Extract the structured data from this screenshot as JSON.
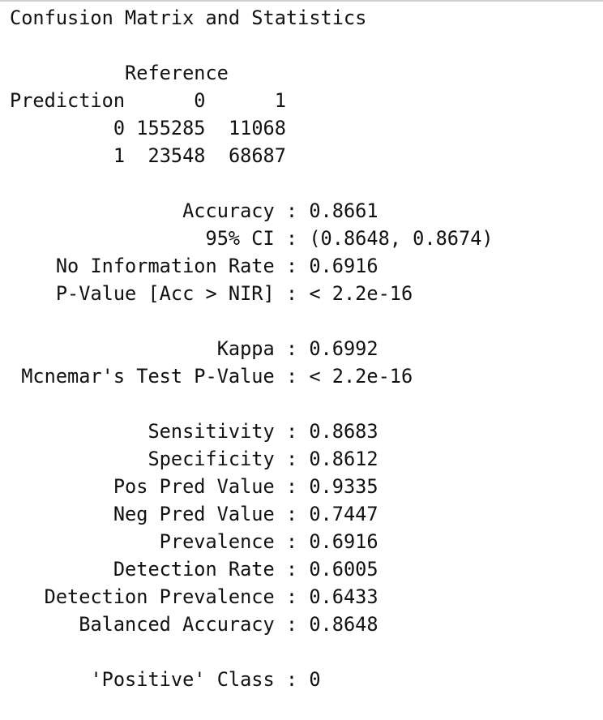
{
  "output": {
    "title": "Confusion Matrix and Statistics",
    "reference_header": "Reference",
    "matrix": {
      "row_label": "Prediction",
      "col_headers": [
        "0",
        "1"
      ],
      "rows": [
        {
          "label": "0",
          "values": [
            "155285",
            "11068"
          ]
        },
        {
          "label": "1",
          "values": [
            "23548",
            "68687"
          ]
        }
      ]
    },
    "stats_group_1": [
      {
        "label": "Accuracy",
        "value": "0.8661"
      },
      {
        "label": "95% CI",
        "value": "(0.8648, 0.8674)"
      },
      {
        "label": "No Information Rate",
        "value": "0.6916"
      },
      {
        "label": "P-Value [Acc > NIR]",
        "value": "< 2.2e-16"
      }
    ],
    "stats_group_2": [
      {
        "label": "Kappa",
        "value": "0.6992"
      },
      {
        "label": "Mcnemar's Test P-Value",
        "value": "< 2.2e-16"
      }
    ],
    "stats_group_3": [
      {
        "label": "Sensitivity",
        "value": "0.8683"
      },
      {
        "label": "Specificity",
        "value": "0.8612"
      },
      {
        "label": "Pos Pred Value",
        "value": "0.9335"
      },
      {
        "label": "Neg Pred Value",
        "value": "0.7447"
      },
      {
        "label": "Prevalence",
        "value": "0.6916"
      },
      {
        "label": "Detection Rate",
        "value": "0.6005"
      },
      {
        "label": "Detection Prevalence",
        "value": "0.6433"
      },
      {
        "label": "Balanced Accuracy",
        "value": "0.8648"
      }
    ],
    "positive_class": {
      "label": "'Positive' Class",
      "value": "0"
    }
  }
}
